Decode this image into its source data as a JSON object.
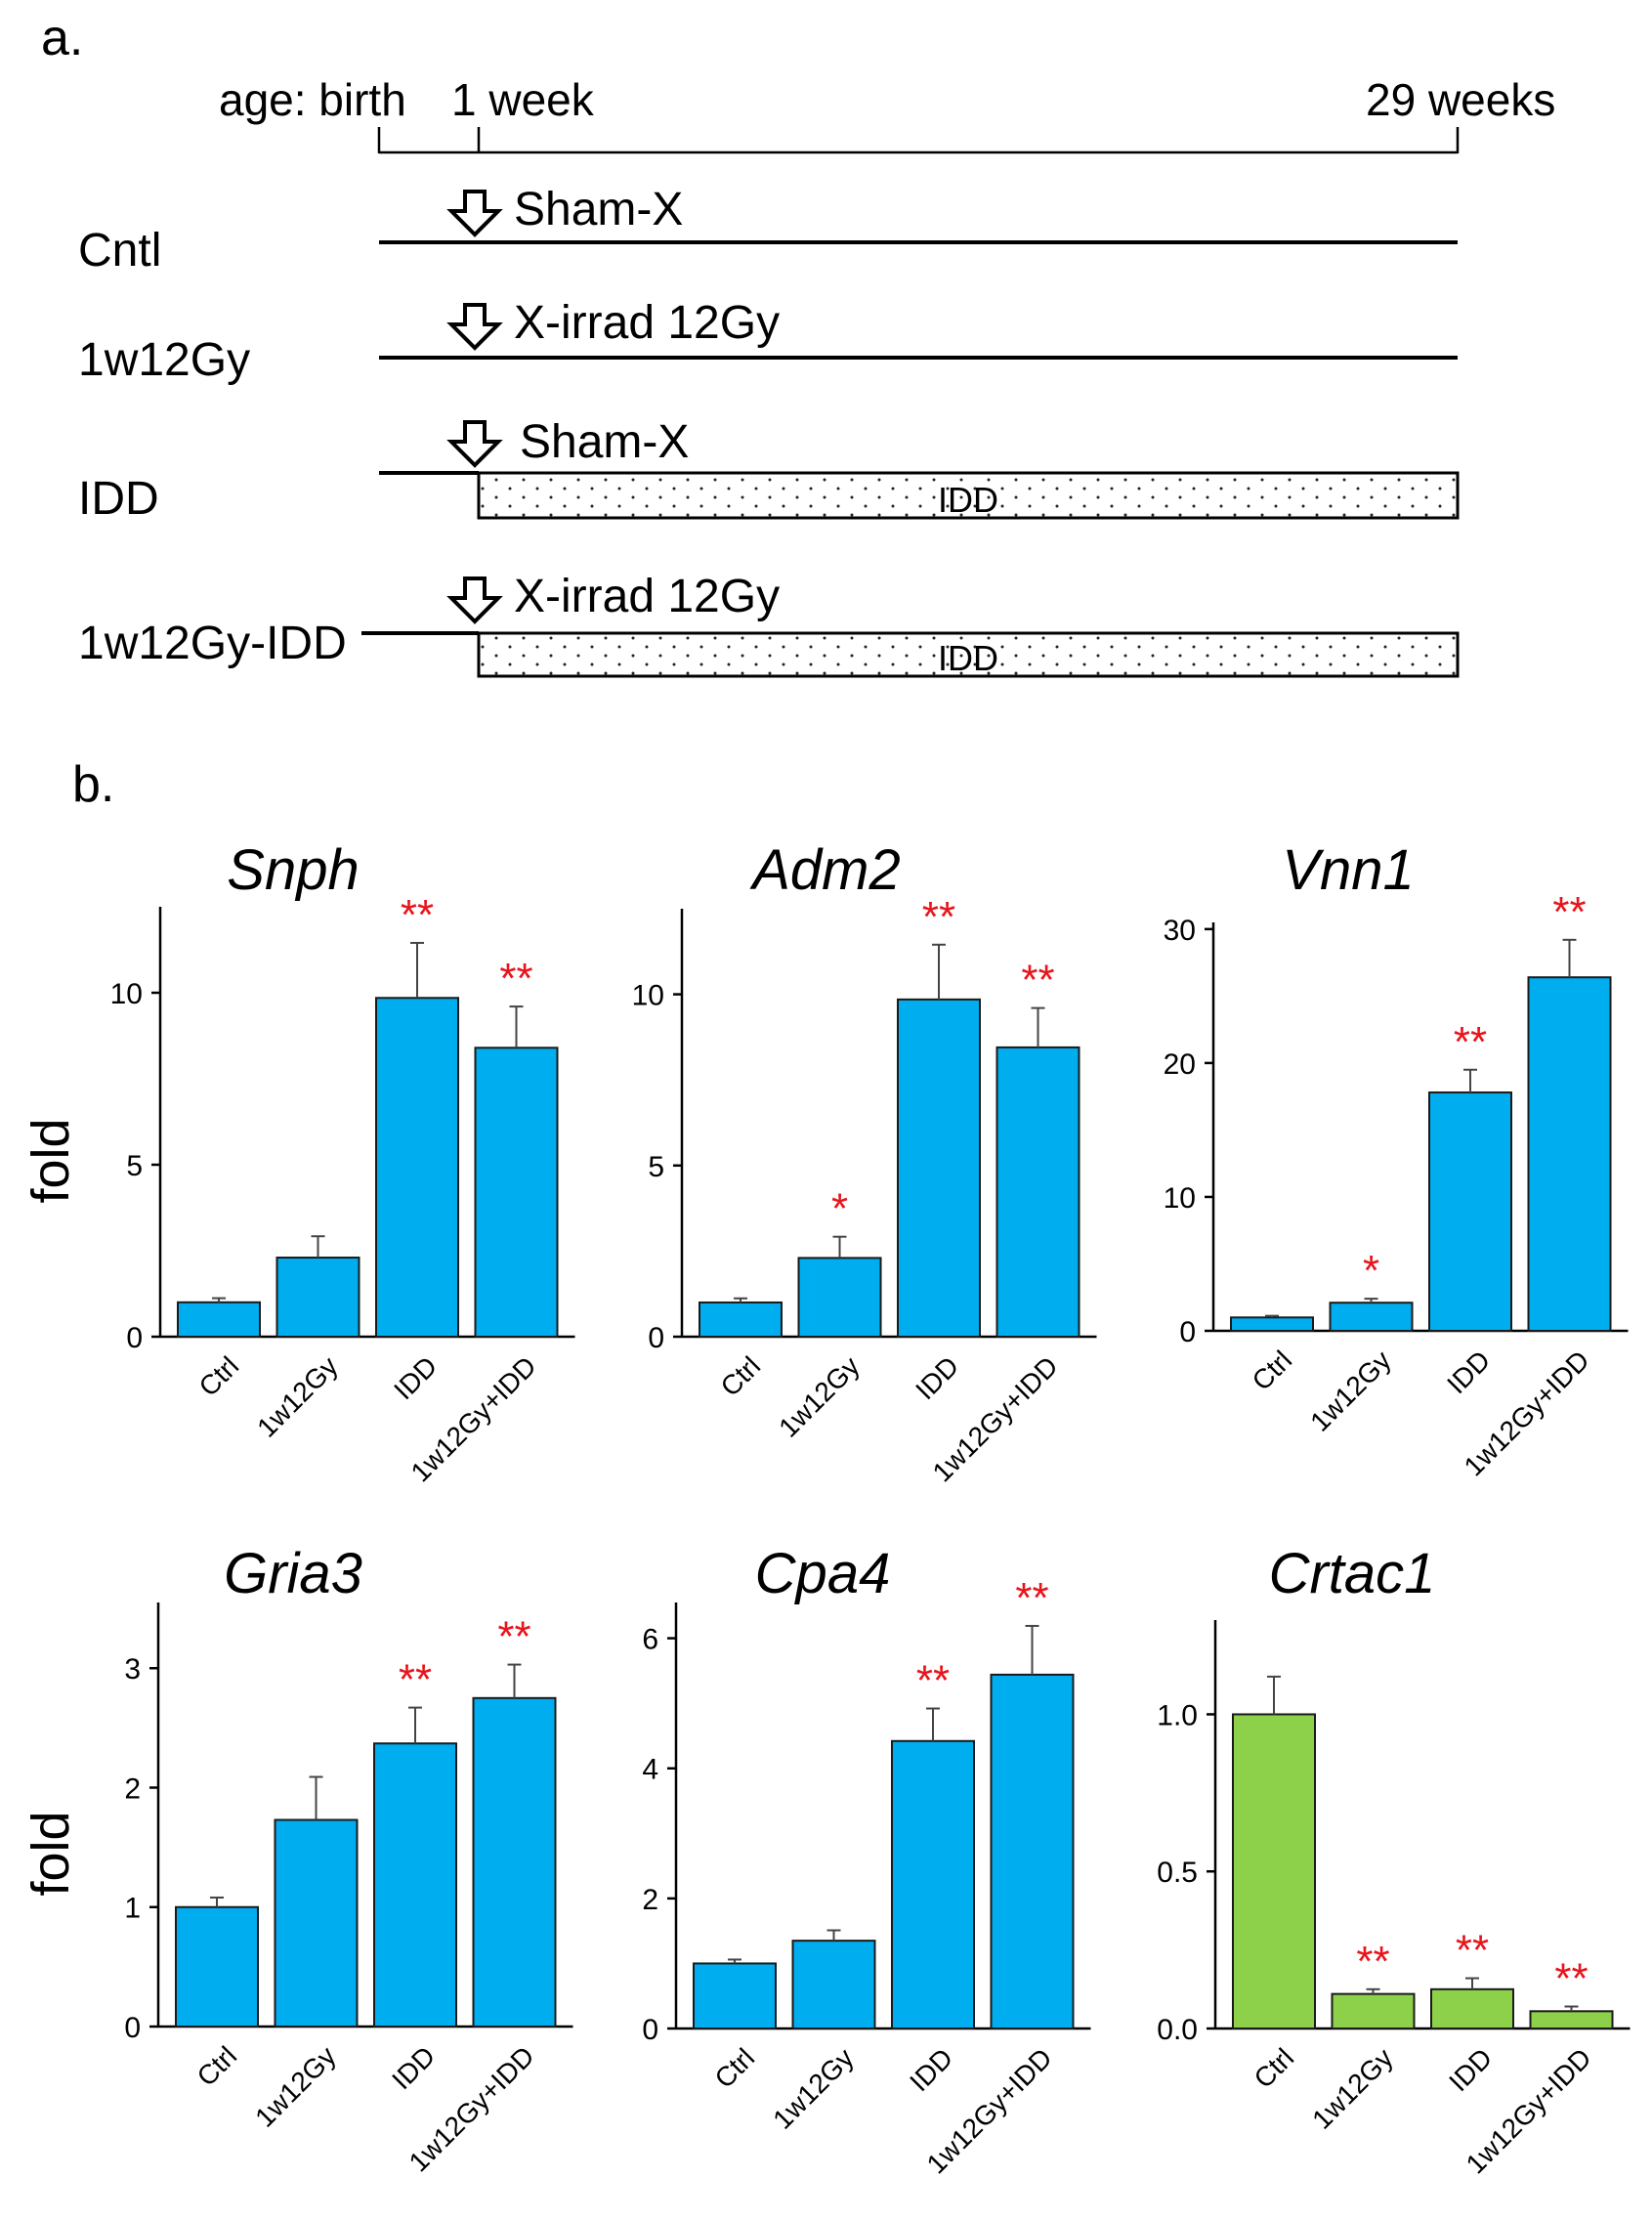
{
  "panel_a": {
    "label": "a.",
    "timeline": {
      "age_prefix": "age: birth",
      "mid": "1 week",
      "end": "29 weeks"
    },
    "groups": [
      {
        "name": "Cntl",
        "treatment": "Sham-X",
        "diet": ""
      },
      {
        "name": "1w12Gy",
        "treatment": "X-irrad 12Gy",
        "diet": ""
      },
      {
        "name": "IDD",
        "treatment": "Sham-X",
        "diet": "IDD"
      },
      {
        "name": "1w12Gy-IDD",
        "treatment": "X-irrad 12Gy",
        "diet": "IDD"
      }
    ]
  },
  "panel_b": {
    "label": "b.",
    "y_label": "fold"
  },
  "colors": {
    "blue": "#00ADEF",
    "green": "#8DD049",
    "sig": "#E8141B"
  },
  "chart_data": [
    {
      "type": "bar",
      "title": "Snph",
      "categories": [
        "Ctrl",
        "1w12Gy",
        "IDD",
        "1w12Gy+IDD"
      ],
      "values": [
        1.0,
        2.3,
        9.85,
        8.4
      ],
      "errors": [
        0.12,
        0.62,
        1.6,
        1.2
      ],
      "significance": [
        "",
        "",
        "**",
        "**"
      ],
      "ylim": [
        0,
        12.5
      ],
      "yticks": [
        0,
        5,
        10
      ],
      "ytick_labels": [
        "0",
        "5",
        "10"
      ],
      "ylabel": "fold",
      "color": "blue"
    },
    {
      "type": "bar",
      "title": "Adm2",
      "categories": [
        "Ctrl",
        "1w12Gy",
        "IDD",
        "1w12Gy+IDD"
      ],
      "values": [
        1.0,
        2.3,
        9.85,
        8.45
      ],
      "errors": [
        0.12,
        0.62,
        1.6,
        1.15
      ],
      "significance": [
        "",
        "*",
        "**",
        "**"
      ],
      "ylim": [
        0,
        12.5
      ],
      "yticks": [
        0,
        5,
        10
      ],
      "ytick_labels": [
        "0",
        "5",
        "10"
      ],
      "ylabel": "",
      "color": "blue"
    },
    {
      "type": "bar",
      "title": "Vnn1",
      "categories": [
        "Ctrl",
        "1w12Gy",
        "IDD",
        "1w12Gy+IDD"
      ],
      "values": [
        1.0,
        2.1,
        17.8,
        26.4
      ],
      "errors": [
        0.12,
        0.3,
        1.7,
        2.8
      ],
      "significance": [
        "",
        "*",
        "**",
        "**"
      ],
      "ylim": [
        0,
        30.5
      ],
      "yticks": [
        0,
        10,
        20,
        30
      ],
      "ytick_labels": [
        "0",
        "10",
        "20",
        "30"
      ],
      "ylabel": "",
      "color": "blue"
    },
    {
      "type": "bar",
      "title": "Gria3",
      "categories": [
        "Ctrl",
        "1w12Gy",
        "IDD",
        "1w12Gy+IDD"
      ],
      "values": [
        1.0,
        1.73,
        2.37,
        2.75
      ],
      "errors": [
        0.08,
        0.36,
        0.3,
        0.28
      ],
      "significance": [
        "",
        "",
        "**",
        "**"
      ],
      "ylim": [
        0,
        3.55
      ],
      "yticks": [
        0,
        1,
        2,
        3
      ],
      "ytick_labels": [
        "0",
        "1",
        "2",
        "3"
      ],
      "ylabel": "fold",
      "color": "blue"
    },
    {
      "type": "bar",
      "title": "Cpa4",
      "categories": [
        "Ctrl",
        "1w12Gy",
        "IDD",
        "1w12Gy+IDD"
      ],
      "values": [
        1.0,
        1.35,
        4.42,
        5.44
      ],
      "errors": [
        0.06,
        0.16,
        0.5,
        0.75
      ],
      "significance": [
        "",
        "",
        "**",
        "**"
      ],
      "ylim": [
        0,
        6.55
      ],
      "yticks": [
        0,
        2,
        4,
        6
      ],
      "ytick_labels": [
        "0",
        "2",
        "4",
        "6"
      ],
      "ylabel": "",
      "color": "blue"
    },
    {
      "type": "bar",
      "title": "Crtac1",
      "categories": [
        "Ctrl",
        "1w12Gy",
        "IDD",
        "1w12Gy+IDD"
      ],
      "values": [
        1.0,
        0.11,
        0.125,
        0.055
      ],
      "errors": [
        0.12,
        0.015,
        0.035,
        0.015
      ],
      "significance": [
        "",
        "**",
        "**",
        "**"
      ],
      "ylim": [
        0,
        1.3
      ],
      "yticks": [
        0,
        0.5,
        1.0
      ],
      "ytick_labels": [
        "0.0",
        "0.5",
        "1.0"
      ],
      "ylabel": "",
      "color": "green"
    }
  ]
}
